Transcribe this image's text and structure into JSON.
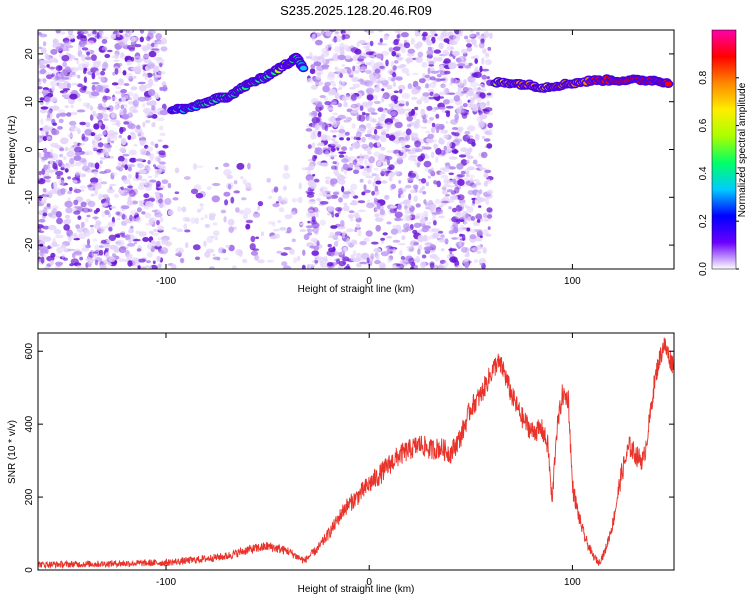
{
  "title": "S235.2025.128.20.46.R09",
  "colors": {
    "line": "#e8322a",
    "speckle_light": "#e3d2fa",
    "speckle_mid": "#b68ef2",
    "speckle_dark": "#6a17d6",
    "axis": "#000000"
  },
  "chart_data": [
    {
      "type": "heatmap",
      "xlabel": "Height of straight line (km)",
      "ylabel": "Frequency (Hz)",
      "xlim": [
        -163,
        150
      ],
      "ylim": [
        -25,
        25
      ],
      "xticks": [
        -100,
        0,
        100
      ],
      "yticks": [
        -20,
        -10,
        0,
        10,
        20
      ],
      "colorbar": {
        "label": "Normalized spectral amplitude",
        "ticks": [
          0.0,
          0.2,
          0.4,
          0.6,
          0.8
        ],
        "range": [
          0,
          1
        ],
        "colormap": [
          "#ffffff",
          "#6a00ff",
          "#0000ff",
          "#00ccff",
          "#00ff66",
          "#aaff00",
          "#ffee00",
          "#ff8800",
          "#ff0000",
          "#ff00aa"
        ]
      },
      "noise_regions": [
        {
          "x_start": -163,
          "x_end": -100,
          "density": 1.0
        },
        {
          "x_start": -100,
          "x_end": -30,
          "density": 0.3,
          "ymax": -3
        },
        {
          "x_start": -30,
          "x_end": 60,
          "density": 1.0
        }
      ],
      "ridge": [
        {
          "x": -97,
          "y": 8.5,
          "amp": 0.3
        },
        {
          "x": -90,
          "y": 8.5,
          "amp": 0.35
        },
        {
          "x": -82,
          "y": 9.5,
          "amp": 0.4
        },
        {
          "x": -76,
          "y": 10.5,
          "amp": 0.45
        },
        {
          "x": -70,
          "y": 11,
          "amp": 0.4
        },
        {
          "x": -64,
          "y": 12.5,
          "amp": 0.45
        },
        {
          "x": -58,
          "y": 14,
          "amp": 0.5
        },
        {
          "x": -52,
          "y": 15,
          "amp": 0.45
        },
        {
          "x": -46,
          "y": 16.5,
          "amp": 0.5
        },
        {
          "x": -40,
          "y": 18,
          "amp": 0.55
        },
        {
          "x": -36,
          "y": 19.5,
          "amp": 0.45
        },
        {
          "x": -32,
          "y": 16.5,
          "amp": 0.35
        },
        {
          "x": 62,
          "y": 14,
          "amp": 0.55
        },
        {
          "x": 70,
          "y": 14,
          "amp": 0.7
        },
        {
          "x": 78,
          "y": 13.5,
          "amp": 0.75
        },
        {
          "x": 86,
          "y": 13,
          "amp": 0.7
        },
        {
          "x": 94,
          "y": 13.5,
          "amp": 0.75
        },
        {
          "x": 102,
          "y": 14,
          "amp": 0.8
        },
        {
          "x": 112,
          "y": 14.5,
          "amp": 0.85
        },
        {
          "x": 122,
          "y": 14.5,
          "amp": 0.9
        },
        {
          "x": 132,
          "y": 14.5,
          "amp": 0.9
        },
        {
          "x": 140,
          "y": 14.5,
          "amp": 0.9
        },
        {
          "x": 148,
          "y": 14,
          "amp": 0.85
        }
      ]
    },
    {
      "type": "line",
      "xlabel": "Height of straight line (km)",
      "ylabel": "SNR (10 * v/v)",
      "xlim": [
        -163,
        150
      ],
      "ylim": [
        0,
        650
      ],
      "xticks": [
        -100,
        0,
        100
      ],
      "yticks": [
        0,
        200,
        400,
        600
      ],
      "grid": false,
      "series": [
        {
          "x": [
            -163,
            -140,
            -120,
            -100,
            -85,
            -70,
            -60,
            -50,
            -40,
            -32,
            -25,
            -18,
            -12,
            -6,
            0,
            5,
            10,
            15,
            20,
            25,
            30,
            35,
            40,
            45,
            50,
            55,
            60,
            63,
            66,
            70,
            75,
            80,
            85,
            88,
            90,
            92,
            95,
            98,
            100,
            103,
            106,
            110,
            113,
            116,
            120,
            124,
            128,
            132,
            135,
            138,
            140,
            142,
            145,
            148,
            150
          ],
          "y": [
            15,
            16,
            18,
            20,
            28,
            38,
            55,
            65,
            52,
            25,
            60,
            115,
            170,
            200,
            235,
            260,
            290,
            315,
            330,
            345,
            330,
            335,
            320,
            365,
            445,
            480,
            540,
            570,
            550,
            480,
            420,
            380,
            385,
            340,
            180,
            370,
            480,
            470,
            230,
            150,
            90,
            40,
            20,
            50,
            130,
            260,
            340,
            310,
            300,
            410,
            500,
            560,
            620,
            580,
            560
          ],
          "noise": 22
        }
      ]
    }
  ]
}
